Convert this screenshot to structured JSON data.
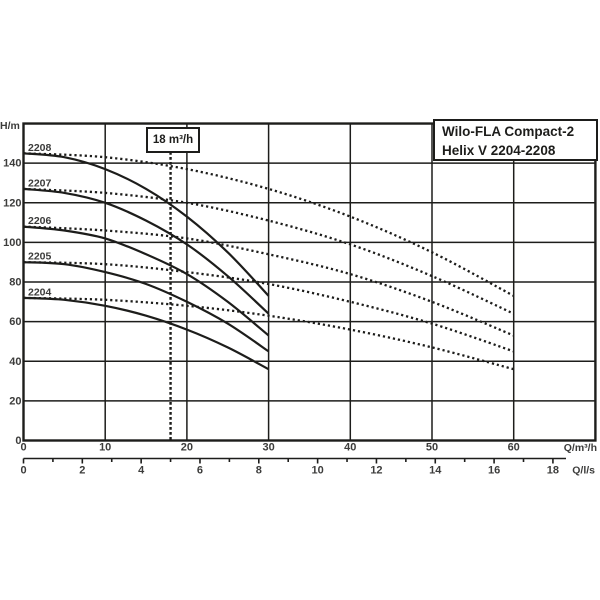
{
  "title_box": {
    "line1": "Wilo-FLA Compact-2",
    "line2": "Helix V 2204-2208"
  },
  "colors": {
    "line": "#1d1d1b",
    "label": "#3c3c3b",
    "background": "#ffffff"
  },
  "chart_data": {
    "type": "line",
    "title": "Wilo-FLA Compact-2 Helix V 2204-2208",
    "grid": true,
    "legend_position": "none",
    "y_axis": {
      "label": "H/m",
      "ticks": [
        0,
        20,
        40,
        60,
        80,
        100,
        120,
        140
      ],
      "range": [
        0,
        160
      ]
    },
    "x_axis_primary": {
      "label": "Q/m³/h",
      "ticks": [
        0,
        10,
        20,
        30,
        40,
        50,
        60
      ],
      "range": [
        0,
        70
      ]
    },
    "x_axis_secondary": {
      "label": "Q/l/s",
      "major_ticks": [
        0,
        2,
        4,
        6,
        8,
        10,
        12,
        14,
        16,
        18
      ],
      "minor_ticks": [
        1,
        3,
        5,
        7,
        9,
        11,
        13,
        15,
        17
      ],
      "m3h_per_ls": 3.6
    },
    "marker": {
      "label": "18 m³/h",
      "q_m3h": 18,
      "style": "dashed-vertical"
    },
    "curve_styles": {
      "single_pump": "solid",
      "two_pumps_parallel": "dotted"
    },
    "q_fractions": [
      0,
      0.1667,
      0.3333,
      0.5,
      0.6667,
      0.8333,
      1
    ],
    "single_pump_qmax_m3h": 30,
    "parallel_pumps_qmax_m3h": 60,
    "series": [
      {
        "label": "2208",
        "head_points_m": [
          145,
          143,
          137,
          127,
          113,
          95,
          73
        ]
      },
      {
        "label": "2207",
        "head_points_m": [
          127,
          125,
          120,
          111,
          99,
          83,
          64
        ]
      },
      {
        "label": "2206",
        "head_points_m": [
          108,
          106,
          102,
          94,
          84,
          70,
          53
        ]
      },
      {
        "label": "2205",
        "head_points_m": [
          90,
          89,
          85,
          79,
          70,
          59,
          45
        ]
      },
      {
        "label": "2204",
        "head_points_m": [
          72,
          71,
          68,
          63,
          56,
          47,
          36
        ]
      }
    ]
  }
}
